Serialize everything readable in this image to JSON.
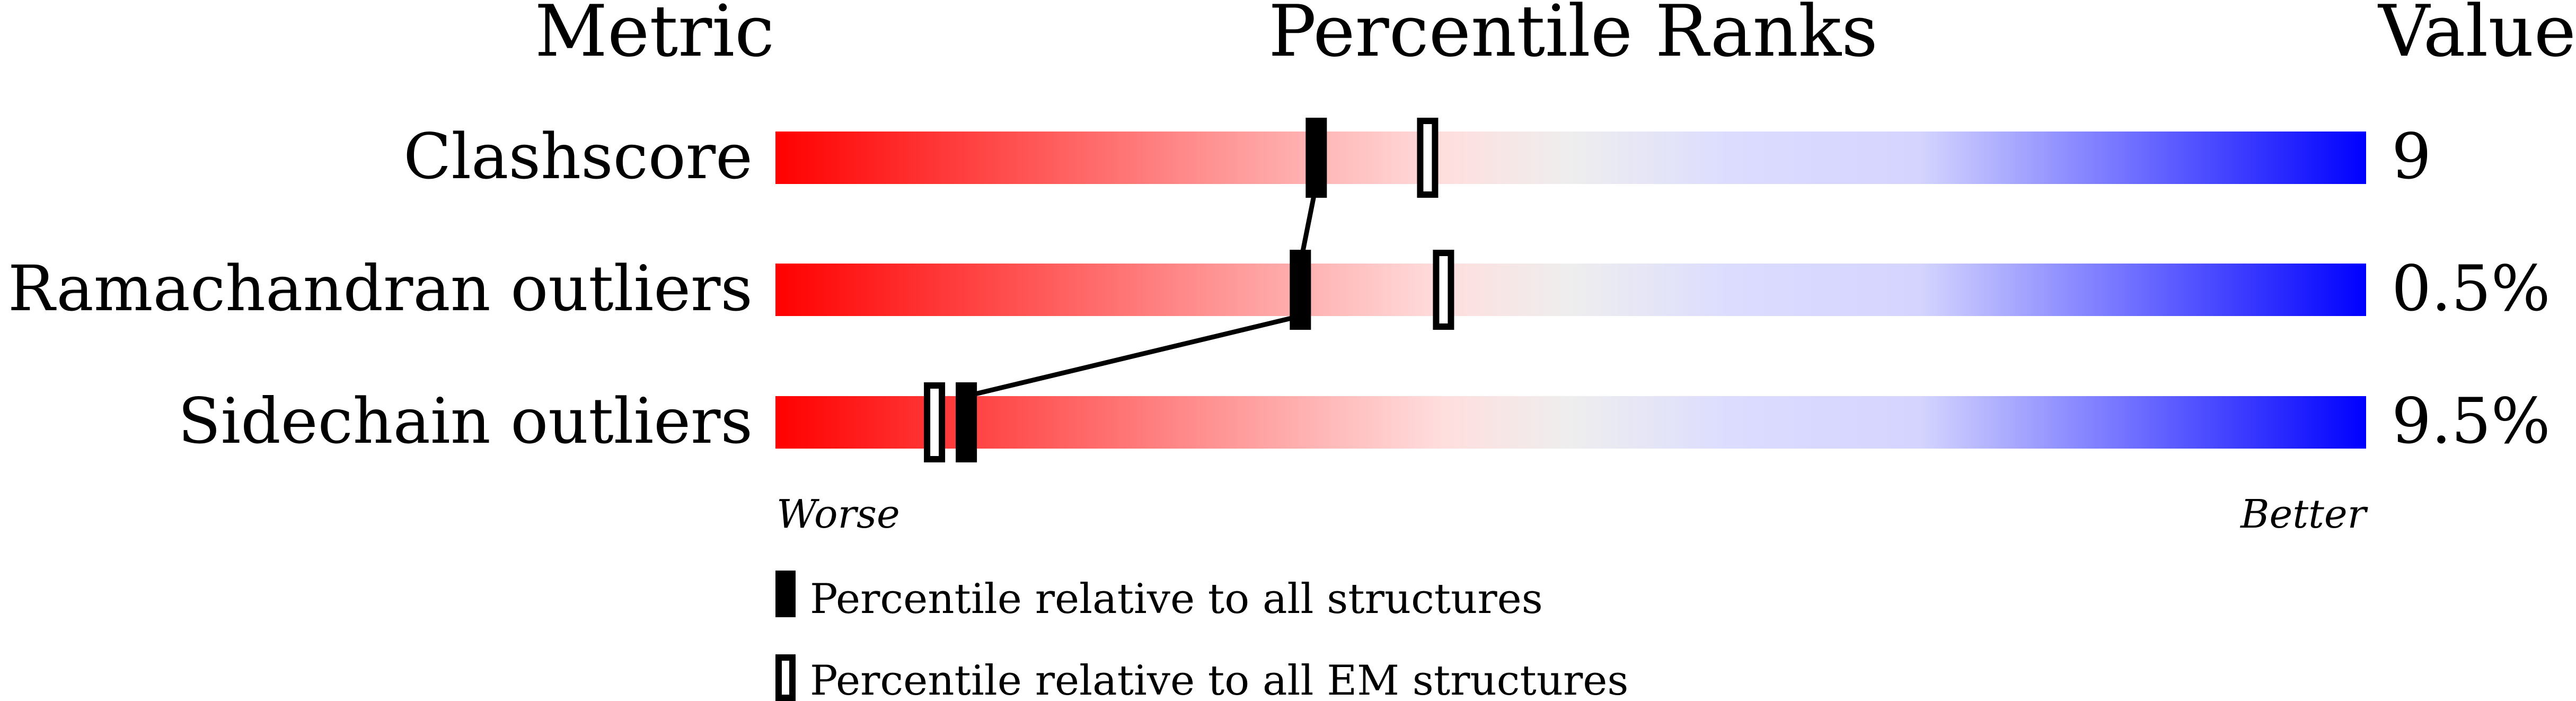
{
  "chart_data": {
    "type": "percentile-slider",
    "headers": {
      "metric": "Metric",
      "ranks": "Percentile Ranks",
      "value": "Value"
    },
    "xlim": [
      0,
      100
    ],
    "metrics": [
      {
        "label": "Clashscore",
        "value": "9",
        "percentile_all": 34,
        "percentile_em": 41
      },
      {
        "label": "Ramachandran outliers",
        "value": "0.5%",
        "percentile_all": 33,
        "percentile_em": 42
      },
      {
        "label": "Sidechain outliers",
        "value": "9.5%",
        "percentile_all": 12,
        "percentile_em": 10
      }
    ],
    "axis": {
      "left": "Worse",
      "right": "Better"
    },
    "gradient_colors": {
      "worse": "#ff0000",
      "middle": "#eeeeee",
      "better": "#0000ff"
    },
    "legend": [
      {
        "marker": "filled",
        "label": "Percentile relative to all structures"
      },
      {
        "marker": "hollow",
        "label": "Percentile relative to all EM structures"
      }
    ]
  }
}
